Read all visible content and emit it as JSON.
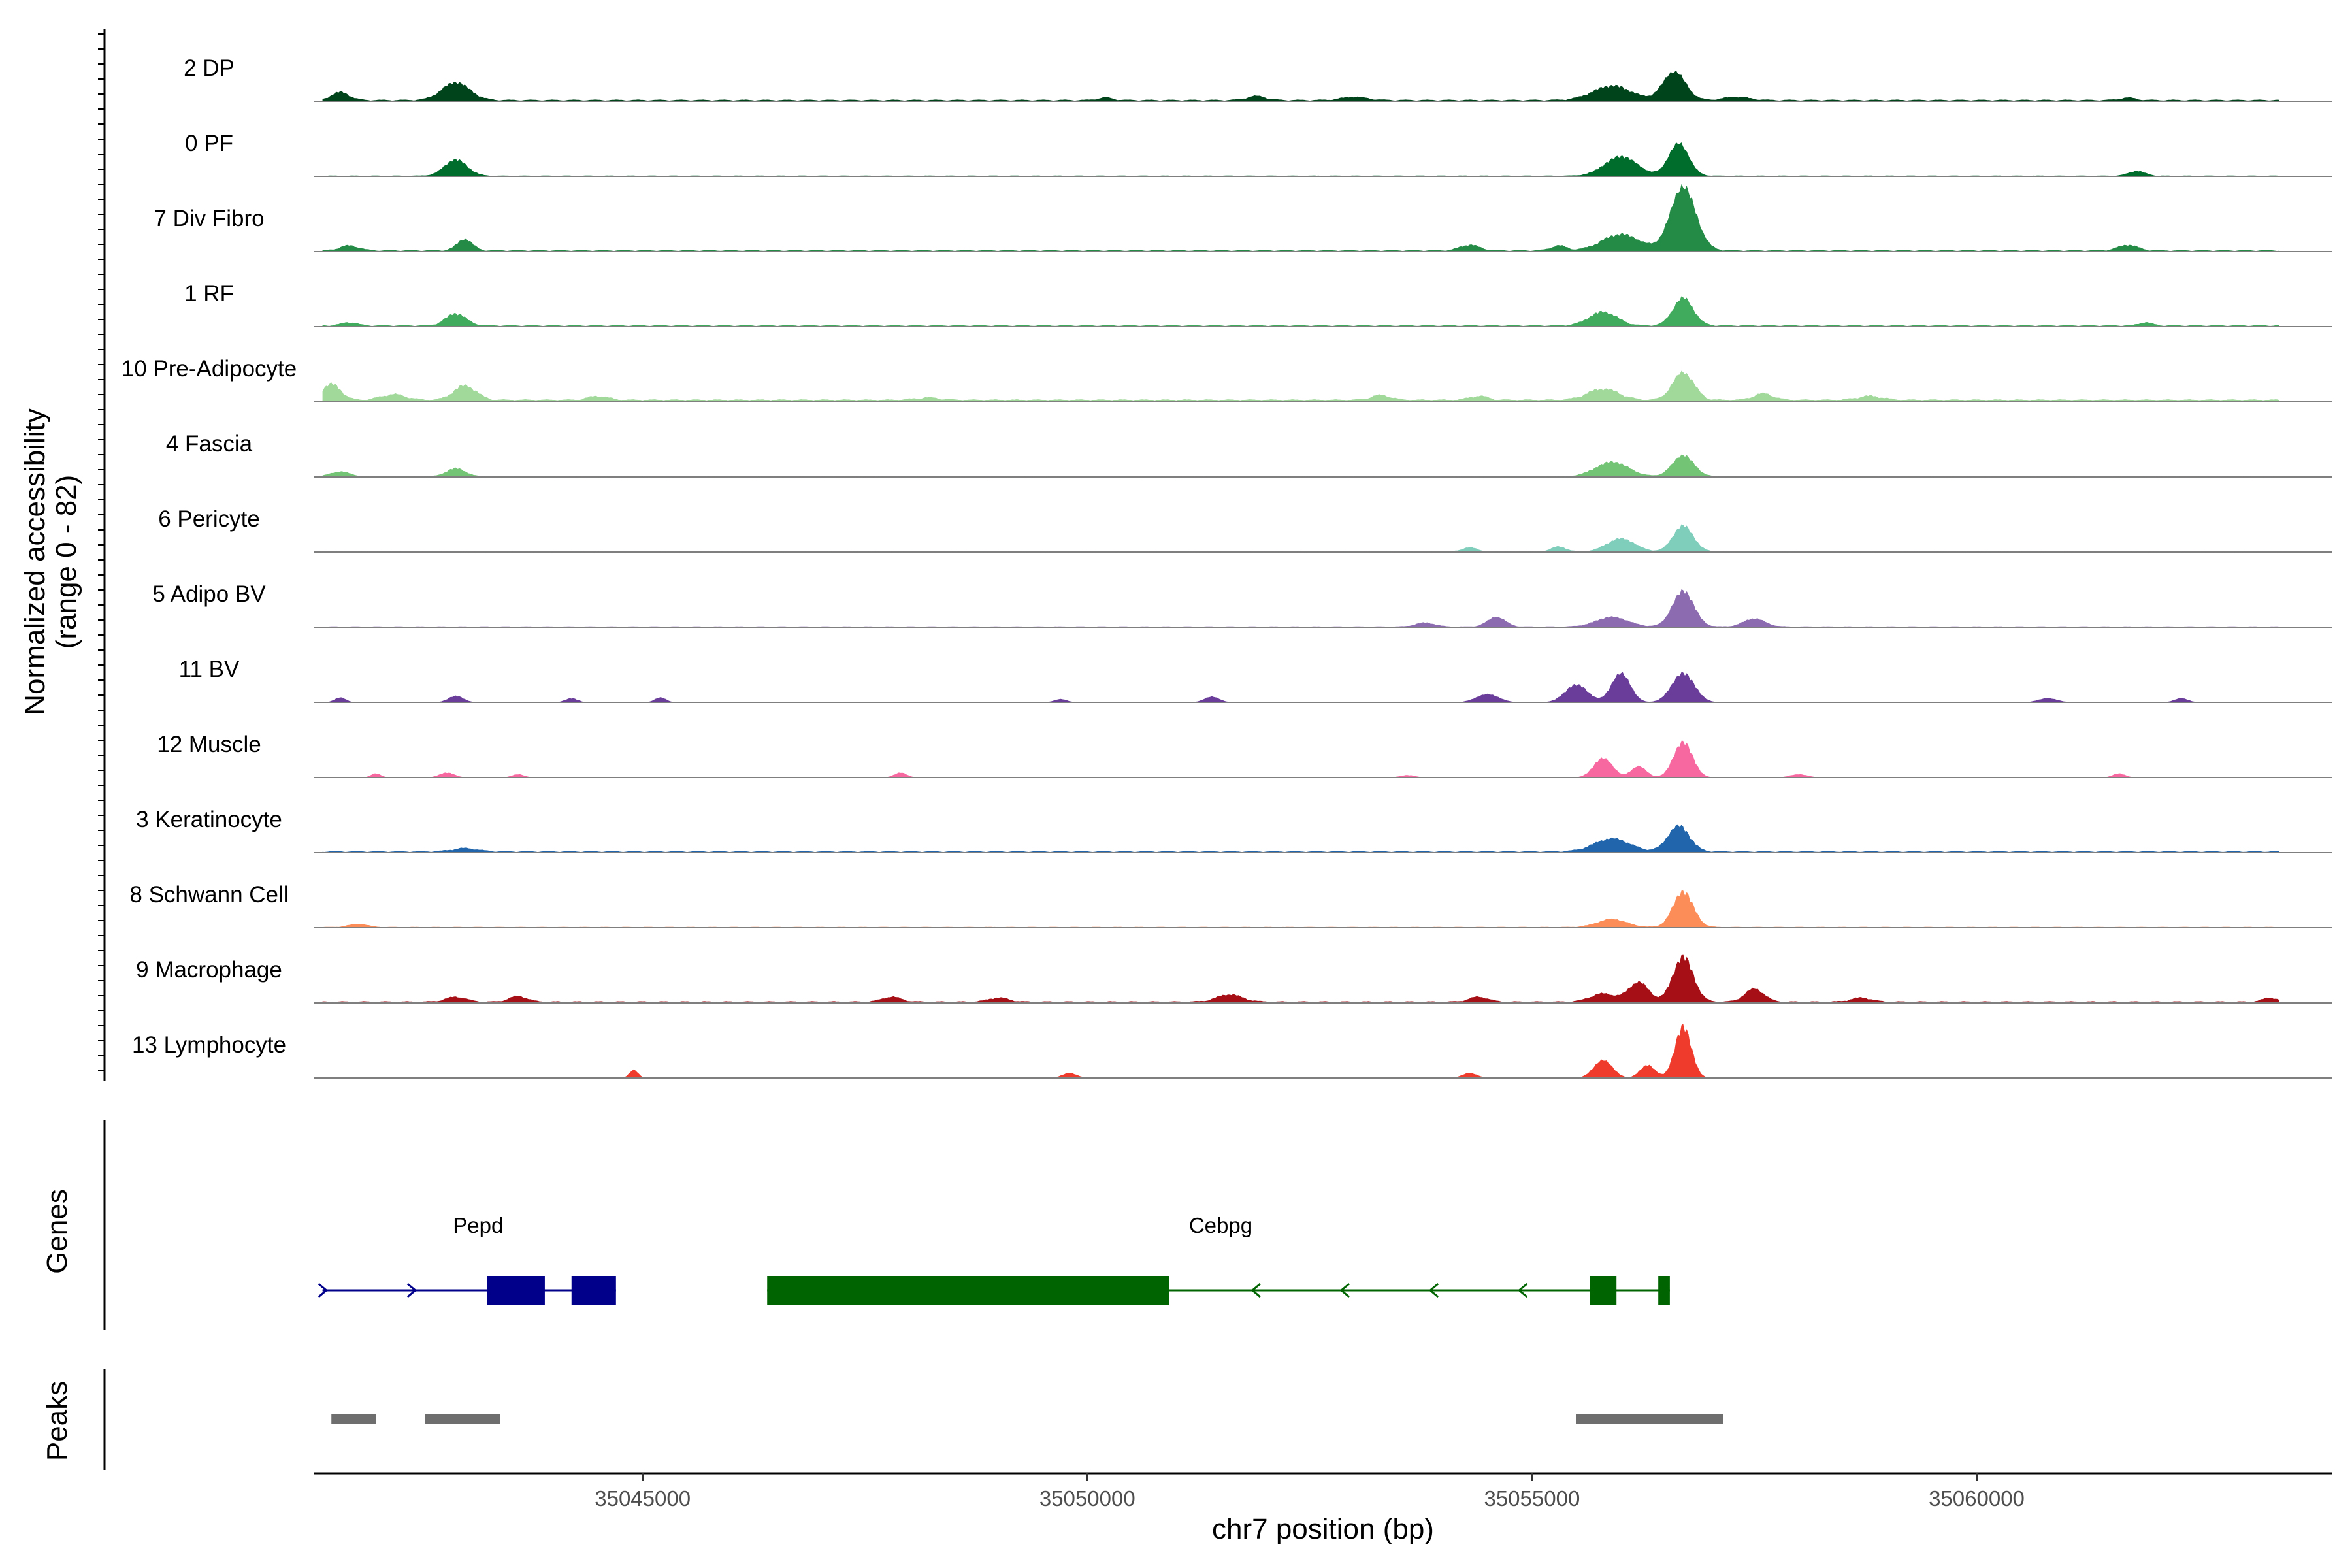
{
  "chart_data": {
    "type": "area",
    "y_axis_title": "Normalized accessibility",
    "y_axis_subtitle": "(range 0 - 82)",
    "y_range": [
      0,
      82
    ],
    "x_axis_title": "chr7 position (bp)",
    "x_range": [
      35041300,
      35064000
    ],
    "x_ticks": [
      {
        "value": 35045000,
        "label": "35045000"
      },
      {
        "value": 35050000,
        "label": "35050000"
      },
      {
        "value": 35055000,
        "label": "35055000"
      },
      {
        "value": 35060000,
        "label": "35060000"
      }
    ],
    "tracks": [
      {
        "name": "2 DP",
        "color": "#00441b",
        "base": 2,
        "peaks": [
          [
            35041600,
            10,
            140
          ],
          [
            35042900,
            22,
            220
          ],
          [
            35050200,
            3,
            120
          ],
          [
            35051900,
            5,
            150
          ],
          [
            35053000,
            4,
            200
          ],
          [
            35055900,
            18,
            300
          ],
          [
            35056600,
            35,
            180
          ],
          [
            35057300,
            4,
            200
          ],
          [
            35061700,
            3,
            120
          ]
        ]
      },
      {
        "name": "0 PF",
        "color": "#006d2c",
        "base": 1,
        "peaks": [
          [
            35042900,
            20,
            180
          ],
          [
            35056000,
            24,
            260
          ],
          [
            35056650,
            40,
            160
          ],
          [
            35061800,
            6,
            130
          ]
        ]
      },
      {
        "name": "7 Div Fibro",
        "color": "#238b45",
        "base": 2,
        "peaks": [
          [
            35041700,
            6,
            150
          ],
          [
            35043000,
            14,
            120
          ],
          [
            35054300,
            7,
            150
          ],
          [
            35055300,
            6,
            120
          ],
          [
            35056000,
            20,
            300
          ],
          [
            35056700,
            78,
            200
          ],
          [
            35061700,
            7,
            150
          ]
        ]
      },
      {
        "name": "1 RF",
        "color": "#41ab5d",
        "base": 2,
        "peaks": [
          [
            35041700,
            4,
            120
          ],
          [
            35042900,
            15,
            160
          ],
          [
            35055800,
            17,
            220
          ],
          [
            35056700,
            34,
            160
          ],
          [
            35061900,
            4,
            100
          ]
        ]
      },
      {
        "name": "10 Pre-Adipocyte",
        "color": "#a1d99b",
        "base": 3,
        "peaks": [
          [
            35041500,
            20,
            150
          ],
          [
            35042200,
            7,
            200
          ],
          [
            35043000,
            18,
            180
          ],
          [
            35044500,
            5,
            160
          ],
          [
            35048200,
            3,
            200
          ],
          [
            35053300,
            6,
            160
          ],
          [
            35054400,
            5,
            150
          ],
          [
            35055800,
            14,
            250
          ],
          [
            35056700,
            34,
            170
          ],
          [
            35057600,
            8,
            160
          ],
          [
            35058800,
            5,
            200
          ]
        ]
      },
      {
        "name": "4 Fascia",
        "color": "#74c476",
        "base": 1,
        "peaks": [
          [
            35041600,
            6,
            150
          ],
          [
            35042900,
            10,
            150
          ],
          [
            35055900,
            18,
            260
          ],
          [
            35056700,
            26,
            170
          ]
        ]
      },
      {
        "name": "6 Pericyte",
        "color": "#7fcdbb",
        "base": 1,
        "peaks": [
          [
            35054300,
            5,
            120
          ],
          [
            35055300,
            6,
            120
          ],
          [
            35056000,
            16,
            220
          ],
          [
            35056700,
            32,
            160
          ]
        ]
      },
      {
        "name": "5 Adipo BV",
        "color": "#8c6bb1",
        "base": 1,
        "peaks": [
          [
            35053800,
            5,
            150
          ],
          [
            35054600,
            12,
            140
          ],
          [
            35055900,
            12,
            250
          ],
          [
            35056700,
            44,
            170
          ],
          [
            35057500,
            10,
            170
          ]
        ]
      },
      {
        "name": "11 BV",
        "color": "#6a3d9a",
        "base": 0,
        "peaks": [
          [
            35041600,
            6,
            90
          ],
          [
            35042900,
            8,
            120
          ],
          [
            35044200,
            5,
            100
          ],
          [
            35045200,
            6,
            90
          ],
          [
            35049700,
            4,
            100
          ],
          [
            35051400,
            7,
            120
          ],
          [
            35054500,
            10,
            180
          ],
          [
            35055500,
            22,
            180
          ],
          [
            35056000,
            36,
            150
          ],
          [
            35056700,
            36,
            180
          ],
          [
            35060800,
            5,
            150
          ],
          [
            35062300,
            5,
            110
          ]
        ]
      },
      {
        "name": "12 Muscle",
        "color": "#f768a1",
        "base": 0,
        "peaks": [
          [
            35042000,
            5,
            80
          ],
          [
            35042800,
            6,
            120
          ],
          [
            35043600,
            4,
            100
          ],
          [
            35047900,
            6,
            100
          ],
          [
            35053600,
            3,
            120
          ],
          [
            35055800,
            24,
            150
          ],
          [
            35056200,
            14,
            120
          ],
          [
            35056700,
            44,
            150
          ],
          [
            35058000,
            4,
            140
          ],
          [
            35061600,
            5,
            100
          ]
        ]
      },
      {
        "name": "3 Keratinocyte",
        "color": "#2166ac",
        "base": 2,
        "peaks": [
          [
            35043000,
            4,
            200
          ],
          [
            35055900,
            16,
            280
          ],
          [
            35056650,
            32,
            170
          ]
        ]
      },
      {
        "name": "8 Schwann Cell",
        "color": "#fc8d59",
        "base": 1,
        "peaks": [
          [
            35041800,
            4,
            150
          ],
          [
            35055900,
            10,
            230
          ],
          [
            35056700,
            44,
            160
          ]
        ]
      },
      {
        "name": "9 Macrophage",
        "color": "#a50f15",
        "base": 2,
        "peaks": [
          [
            35042900,
            6,
            160
          ],
          [
            35043600,
            7,
            140
          ],
          [
            35047800,
            6,
            150
          ],
          [
            35049000,
            5,
            160
          ],
          [
            35051600,
            9,
            200
          ],
          [
            35054400,
            6,
            150
          ],
          [
            35055800,
            10,
            200
          ],
          [
            35056200,
            24,
            160
          ],
          [
            35056700,
            56,
            160
          ],
          [
            35057500,
            16,
            150
          ],
          [
            35058700,
            5,
            160
          ],
          [
            35063300,
            5,
            120
          ]
        ]
      },
      {
        "name": "13 Lymphocyte",
        "color": "#ef3b2c",
        "base": 0,
        "peaks": [
          [
            35044900,
            10,
            70
          ],
          [
            35049800,
            6,
            120
          ],
          [
            35054300,
            6,
            120
          ],
          [
            35055800,
            22,
            150
          ],
          [
            35056300,
            16,
            120
          ],
          [
            35056700,
            64,
            130
          ]
        ]
      }
    ],
    "genes_title": "Genes",
    "genes": [
      {
        "name": "Pepd",
        "color": "#00008b",
        "strand": "+",
        "start": 35041400,
        "end": 35044700,
        "label_at": 35043150,
        "exons": [
          [
            35043250,
            35043900
          ],
          [
            35044200,
            35044700
          ]
        ]
      },
      {
        "name": "Cebpg",
        "color": "#006400",
        "strand": "-",
        "start": 35046400,
        "end": 35056550,
        "label_at": 35051500,
        "exons": [
          [
            35046400,
            35050920
          ],
          [
            35055650,
            35055950
          ],
          [
            35056420,
            35056550
          ]
        ]
      }
    ],
    "peaks_title": "Peaks",
    "peak_regions": [
      [
        35041500,
        35042000
      ],
      [
        35042550,
        35043400
      ],
      [
        35055500,
        35057150
      ]
    ]
  }
}
